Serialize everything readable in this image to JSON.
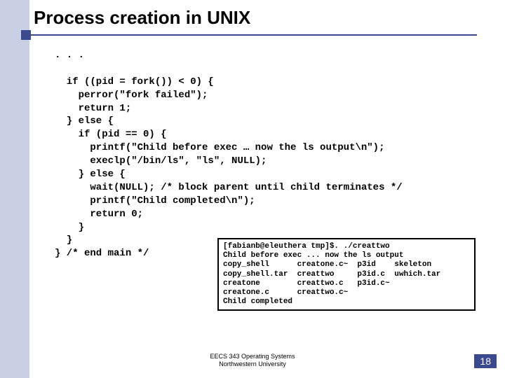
{
  "colors": {
    "rail": "#c9d0e4",
    "accent": "#3b4a8f",
    "text": "#000000",
    "bg": "#ffffff"
  },
  "title": "Process creation in UNIX",
  "code": ". . .\n\n  if ((pid = fork()) < 0) {\n    perror(\"fork failed\");\n    return 1;\n  } else {\n    if (pid == 0) {\n      printf(\"Child before exec … now the ls output\\n\");\n      execlp(\"/bin/ls\", \"ls\", NULL);\n    } else {\n      wait(NULL); /* block parent until child terminates */\n      printf(\"Child completed\\n\");\n      return 0;\n    }\n  }\n} /* end main */",
  "terminal": "[fabianb@eleuthera tmp]$. ./creattwo\nChild before exec ... now the ls output\ncopy_shell      creatone.c~  p3id    skeleton\ncopy_shell.tar  creattwo     p3id.c  uwhich.tar\ncreatone        creattwo.c   p3id.c~\ncreatone.c      creattwo.c~\nChild completed",
  "footer_line1": "EECS 343 Operating Systems",
  "footer_line2": "Northwestern University",
  "page_number": "18"
}
